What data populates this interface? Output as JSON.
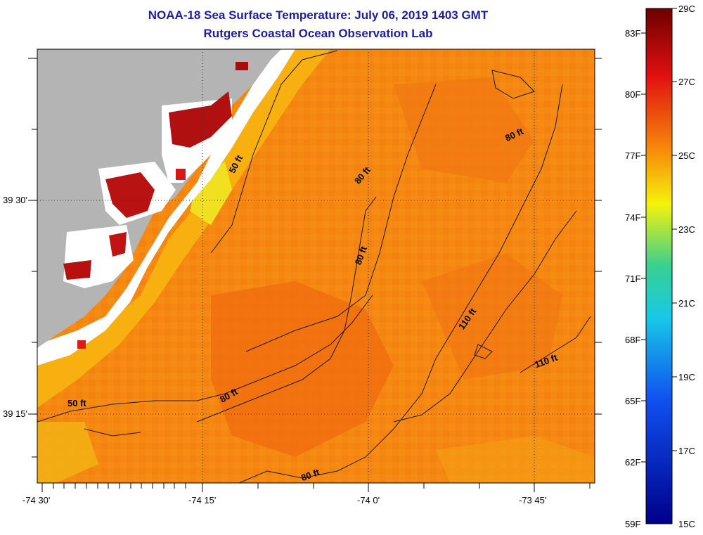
{
  "header": {
    "title": "NOAA-18 Sea Surface Temperature:  July 06, 2019 1403 GMT",
    "subtitle": "Rutgers Coastal Ocean Observation Lab"
  },
  "axes": {
    "lon_ticks": [
      "-74 30'",
      "-74 15'",
      "-74 0'",
      "-73 45'"
    ],
    "lat_ticks": [
      "39 30'",
      "39 15'"
    ]
  },
  "contours": [
    "50 ft",
    "80 ft",
    "80 ft",
    "80 ft",
    "110 ft",
    "110 ft",
    "50 ft",
    "80 ft",
    "80 ft"
  ],
  "colorbar": {
    "fahrenheit": [
      "83F",
      "80F",
      "77F",
      "74F",
      "71F",
      "68F",
      "65F",
      "62F",
      "59F"
    ],
    "celsius": [
      "29C",
      "27C",
      "25C",
      "23C",
      "21C",
      "19C",
      "17C",
      "15C"
    ],
    "colors": {
      "top": "#7a0000",
      "red": "#e81a0c",
      "orange": "#f78a08",
      "yellow": "#f7f30c",
      "green": "#40d080",
      "cyan": "#18c8e8",
      "blue": "#1030e0",
      "bottom": "#000080"
    }
  },
  "map_colors": {
    "land": "#b4b4b4",
    "ocean": "#f58a10",
    "nearshore": "#f0c010",
    "coastal_white": "#ffffff",
    "hot_bay": "#b41010"
  }
}
